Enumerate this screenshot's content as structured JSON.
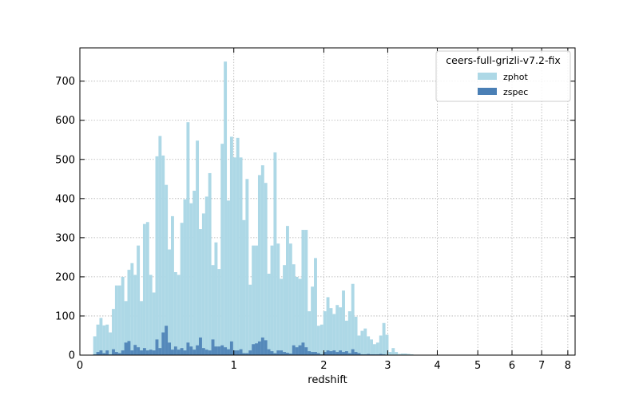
{
  "chart_data": {
    "type": "bar",
    "xlabel": "redshift",
    "ylabel": "",
    "x_scale": "log(1+z)",
    "xlim": [
      0,
      8.3
    ],
    "ylim": [
      0,
      785
    ],
    "x_ticks": [
      0,
      1,
      2,
      3,
      4,
      5,
      6,
      7,
      8
    ],
    "y_ticks": [
      0,
      100,
      200,
      300,
      400,
      500,
      600,
      700
    ],
    "grid": true,
    "legend": {
      "title": "ceers-full-grizli-v7.2-fix",
      "placement": "top-right"
    },
    "bin_edges_log1pz": [
      0.06,
      0.074,
      0.088,
      0.102,
      0.116,
      0.13,
      0.144,
      0.158,
      0.172,
      0.186,
      0.2,
      0.214,
      0.228,
      0.242,
      0.256,
      0.27,
      0.284,
      0.298,
      0.312,
      0.326,
      0.34,
      0.354,
      0.368,
      0.382,
      0.396,
      0.41,
      0.424,
      0.438,
      0.452,
      0.466,
      0.48,
      0.494,
      0.508,
      0.522,
      0.536,
      0.55,
      0.564,
      0.578,
      0.592,
      0.606,
      0.62,
      0.634,
      0.648,
      0.662,
      0.676,
      0.69,
      0.704,
      0.718,
      0.732,
      0.746,
      0.76,
      0.774,
      0.788,
      0.802,
      0.816,
      0.83,
      0.844,
      0.858,
      0.872,
      0.886,
      0.9,
      0.914,
      0.928,
      0.942,
      0.956,
      0.97,
      0.984,
      0.998,
      1.012,
      1.026,
      1.04,
      1.054,
      1.068,
      1.082,
      1.096,
      1.11,
      1.124,
      1.138,
      1.152,
      1.166,
      1.18,
      1.194,
      1.208,
      1.222,
      1.236,
      1.25,
      1.264,
      1.278,
      1.292,
      1.306,
      1.32,
      1.334,
      1.348,
      1.362,
      1.376,
      1.39,
      1.404,
      1.418,
      1.432,
      1.446,
      1.46,
      1.474,
      1.488,
      1.502,
      1.516,
      1.53,
      1.544,
      1.558,
      1.572,
      1.586,
      1.6,
      1.614,
      1.628,
      1.642,
      1.656,
      1.67,
      1.684,
      1.698,
      1.712,
      1.726,
      1.74,
      1.754,
      1.768,
      1.782,
      1.796,
      1.81,
      1.824,
      1.838,
      1.852,
      1.866,
      1.88,
      1.894,
      1.908,
      1.922,
      1.936,
      1.95,
      1.964,
      1.978,
      1.992,
      2.006,
      2.02,
      2.034,
      2.048,
      2.062,
      2.076,
      2.09,
      2.104,
      2.118,
      2.132,
      2.146,
      2.16,
      2.174,
      2.188,
      2.202,
      2.216,
      2.23
    ],
    "series": [
      {
        "name": "zphot",
        "color": "#add8e6",
        "values": [
          48,
          78,
          95,
          76,
          78,
          58,
          118,
          178,
          178,
          200,
          138,
          218,
          235,
          205,
          280,
          138,
          335,
          340,
          205,
          160,
          508,
          560,
          510,
          435,
          270,
          355,
          212,
          205,
          338,
          398,
          595,
          388,
          420,
          548,
          322,
          362,
          405,
          465,
          230,
          288,
          220,
          540,
          750,
          395,
          558,
          505,
          555,
          505,
          345,
          450,
          180,
          280,
          280,
          460,
          485,
          440,
          208,
          280,
          518,
          285,
          195,
          230,
          330,
          285,
          232,
          200,
          195,
          320,
          320,
          112,
          175,
          248,
          75,
          78,
          112,
          148,
          120,
          105,
          128,
          122,
          165,
          88,
          112,
          182,
          98,
          50,
          62,
          68,
          48,
          40,
          28,
          32,
          50,
          82,
          52,
          8,
          18,
          8,
          3,
          4,
          4,
          3,
          2,
          1,
          1,
          1,
          1,
          1,
          1,
          1,
          1,
          1,
          1,
          1,
          1,
          1,
          1,
          1,
          1,
          1,
          1,
          1,
          1,
          1,
          1,
          1,
          1,
          1,
          1,
          1,
          1,
          1,
          1,
          1,
          1,
          1,
          1,
          1,
          1,
          1,
          1,
          1,
          1,
          1,
          1,
          1,
          1,
          1,
          1,
          1,
          1,
          1,
          1,
          1,
          1,
          1
        ]
      },
      {
        "name": "zspec",
        "color": "#4a7fb5",
        "values": [
          2,
          8,
          12,
          5,
          12,
          2,
          15,
          8,
          5,
          12,
          32,
          36,
          12,
          26,
          20,
          12,
          18,
          12,
          14,
          12,
          40,
          18,
          58,
          75,
          32,
          14,
          22,
          14,
          18,
          12,
          32,
          22,
          14,
          25,
          45,
          18,
          14,
          12,
          40,
          22,
          22,
          25,
          20,
          15,
          35,
          12,
          12,
          15,
          5,
          5,
          12,
          28,
          30,
          35,
          45,
          38,
          15,
          10,
          5,
          12,
          12,
          8,
          6,
          4,
          25,
          20,
          25,
          32,
          20,
          10,
          8,
          8,
          5,
          2,
          8,
          12,
          10,
          12,
          8,
          12,
          8,
          10,
          5,
          15,
          8,
          5,
          2,
          2,
          3,
          2,
          2,
          2,
          3,
          2,
          1,
          1,
          1,
          1,
          1,
          1,
          1,
          1,
          1,
          1,
          1,
          1,
          1,
          1,
          1,
          1,
          1,
          1,
          1,
          1,
          1,
          1,
          1,
          1,
          1,
          1,
          1,
          1,
          1,
          1,
          1,
          1,
          1,
          1,
          1,
          1,
          1,
          1,
          1,
          1,
          1,
          1,
          1,
          1,
          1,
          1,
          1,
          1,
          1,
          1,
          1,
          1,
          1,
          1,
          1,
          1,
          1,
          1,
          1,
          1,
          1,
          1,
          1
        ]
      }
    ]
  }
}
